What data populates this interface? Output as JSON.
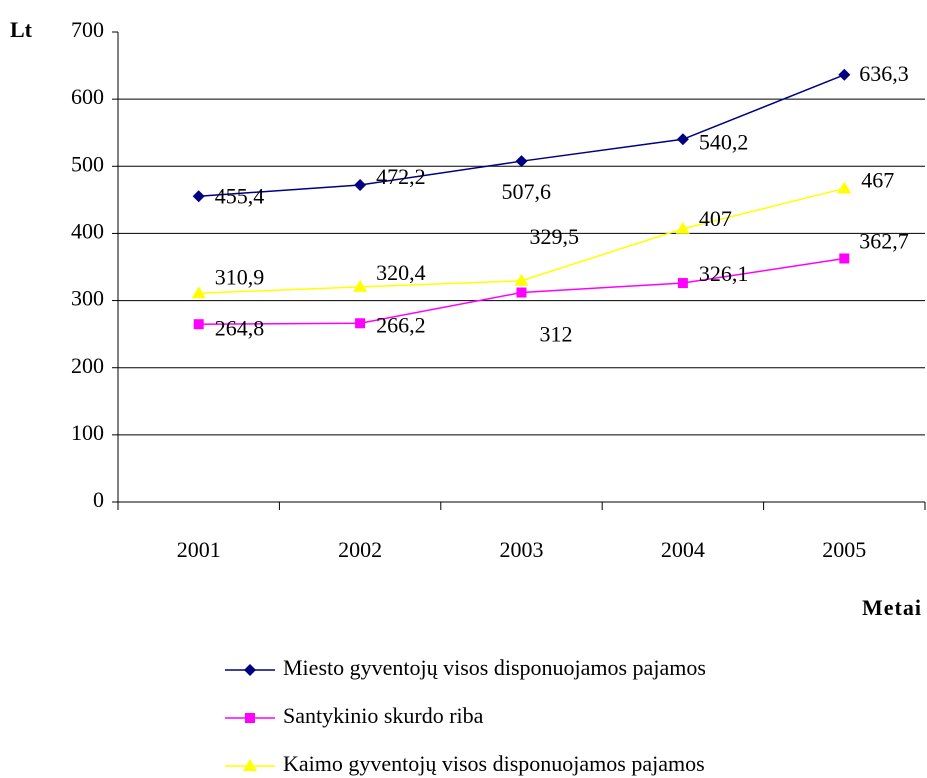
{
  "chart_data": {
    "type": "line",
    "y_label": "Lt",
    "x_label": "Metai",
    "categories": [
      "2001",
      "2002",
      "2003",
      "2004",
      "2005"
    ],
    "series": [
      {
        "name": "Miesto gyventojų visos disponuojamos pajamos",
        "color": "#000080",
        "marker": "diamond",
        "values": [
          455.4,
          472.2,
          507.6,
          540.2,
          636.3
        ],
        "value_labels": [
          "455,4",
          "472,2",
          "507,6",
          "540,2",
          "636,3"
        ]
      },
      {
        "name": "Santykinio skurdo riba",
        "color": "#ff00ff",
        "marker": "square",
        "values": [
          264.8,
          266.2,
          312,
          326.1,
          362.7
        ],
        "value_labels": [
          "264,8",
          "266,2",
          "312",
          "326,1",
          "362,7"
        ]
      },
      {
        "name": "Kaimo gyventojų visos disponuojamos pajamos",
        "color": "#ffff00",
        "marker": "triangle",
        "values": [
          310.9,
          320.4,
          329.5,
          407,
          467
        ],
        "value_labels": [
          "310,9",
          "320,4",
          "329,5",
          "407",
          "467"
        ]
      }
    ],
    "ylim": [
      0,
      700
    ],
    "yticks": [
      0,
      100,
      200,
      300,
      400,
      500,
      600,
      700
    ],
    "grid": true
  }
}
